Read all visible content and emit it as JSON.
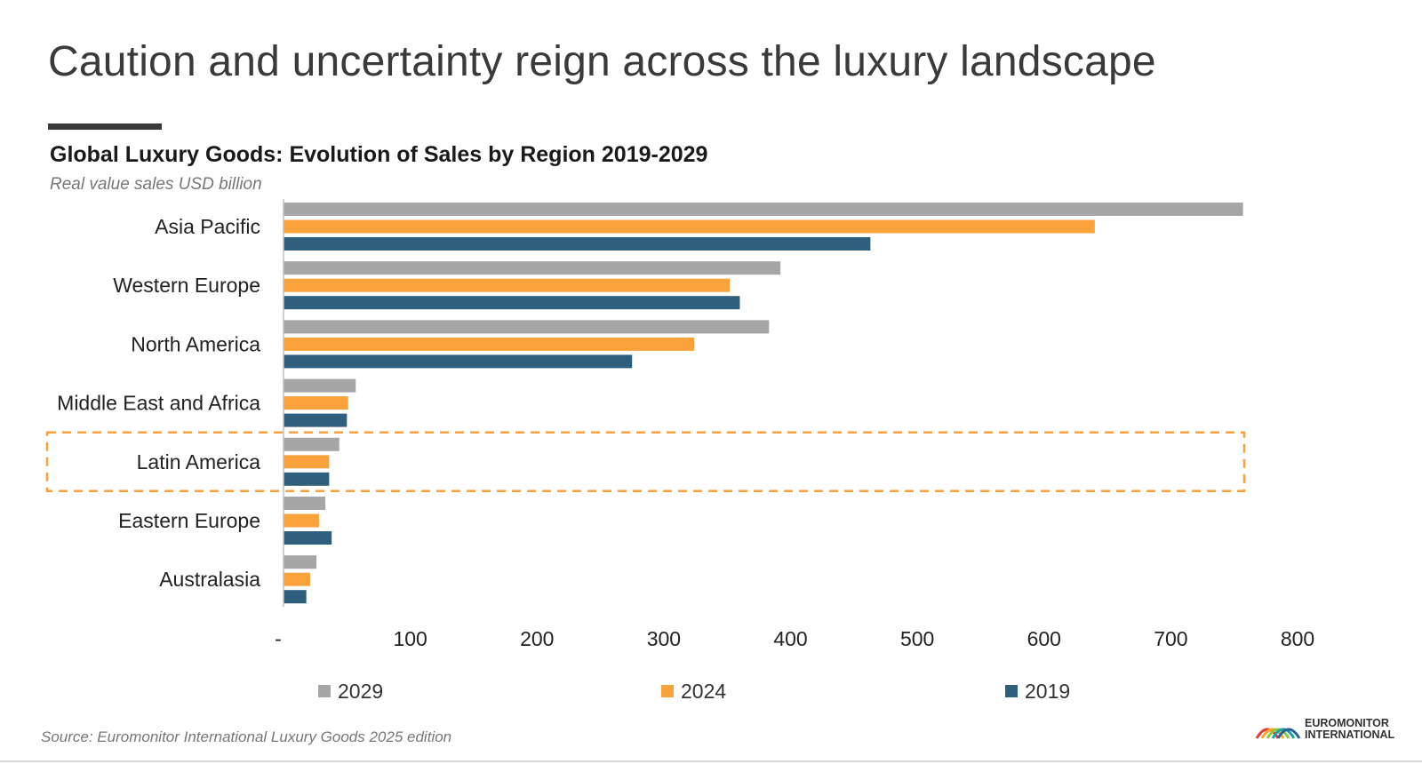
{
  "page": {
    "title": "Caution and uncertainty reign across the luxury landscape",
    "source": "Source: Euromonitor International Luxury Goods 2025 edition",
    "logo": {
      "line1": "EUROMONITOR",
      "line2": "INTERNATIONAL"
    }
  },
  "chart_data": {
    "type": "bar",
    "orientation": "horizontal",
    "title": "Global Luxury Goods: Evolution of Sales by Region 2019-2029",
    "subtitle": "Real value sales USD billion",
    "categories": [
      "Asia Pacific",
      "Western Europe",
      "North America",
      "Middle East and Africa",
      "Latin America",
      "Eastern Europe",
      "Australasia"
    ],
    "series": [
      {
        "name": "2029",
        "color": "#a6a6a6",
        "values": [
          757,
          392,
          383,
          57,
          44,
          33,
          26
        ]
      },
      {
        "name": "2024",
        "color": "#f9a23c",
        "values": [
          640,
          352,
          324,
          51,
          36,
          28,
          21
        ]
      },
      {
        "name": "2019",
        "color": "#2e5f7d",
        "values": [
          463,
          360,
          275,
          50,
          36,
          38,
          18
        ]
      }
    ],
    "xlim": [
      0,
      800
    ],
    "x_ticks": [
      {
        "value": 0,
        "label": "-"
      },
      {
        "value": 100,
        "label": "100"
      },
      {
        "value": 200,
        "label": "200"
      },
      {
        "value": 300,
        "label": "300"
      },
      {
        "value": 400,
        "label": "400"
      },
      {
        "value": 500,
        "label": "500"
      },
      {
        "value": 600,
        "label": "600"
      },
      {
        "value": 700,
        "label": "700"
      },
      {
        "value": 800,
        "label": "800"
      }
    ],
    "grid": false,
    "legend": "bottom",
    "highlight": {
      "category": "Latin America",
      "style": "dashed",
      "color": "#f9a23c"
    }
  }
}
